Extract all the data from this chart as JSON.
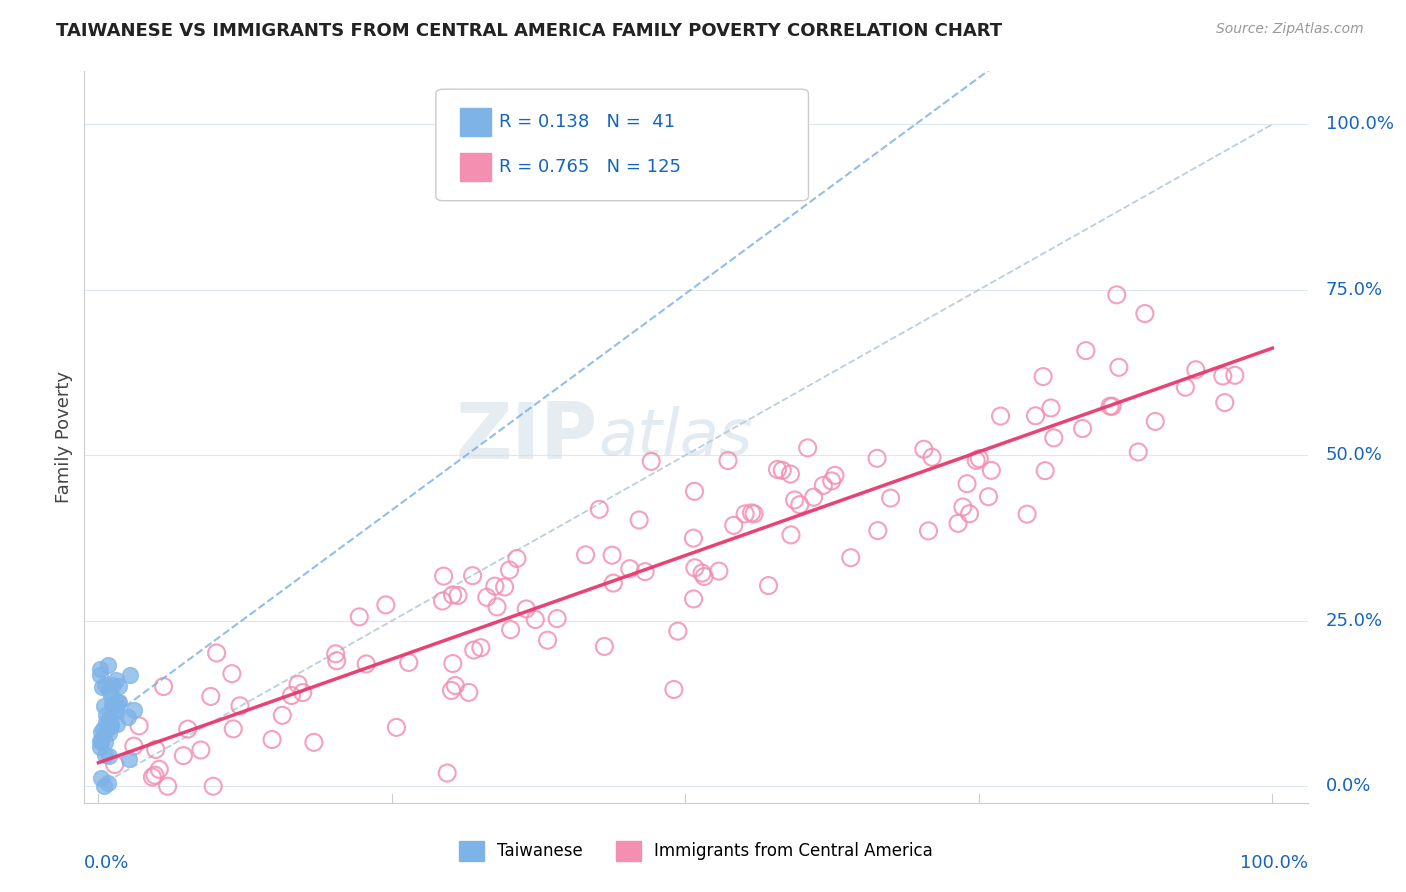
{
  "title": "TAIWANESE VS IMMIGRANTS FROM CENTRAL AMERICA FAMILY POVERTY CORRELATION CHART",
  "source": "Source: ZipAtlas.com",
  "ylabel": "Family Poverty",
  "ytick_labels": [
    "0.0%",
    "25.0%",
    "50.0%",
    "75.0%",
    "100.0%"
  ],
  "ytick_values": [
    0.0,
    0.25,
    0.5,
    0.75,
    1.0
  ],
  "legend_taiwanese_R": "0.138",
  "legend_taiwanese_N": " 41",
  "legend_central_R": "0.765",
  "legend_central_N": "125",
  "taiwanese_color": "#7eb3e8",
  "central_color": "#f48fb1",
  "regression_blue_color": "#7eb3e8",
  "regression_pink_color": "#e8386e",
  "diagonal_color": "#aec6d8",
  "watermark_zip": "ZIP",
  "watermark_atlas": "atlas",
  "background_color": "#ffffff",
  "grid_color": "#dde8ee",
  "title_color": "#222222",
  "axis_label_color": "#1565c0",
  "source_color": "#999999"
}
